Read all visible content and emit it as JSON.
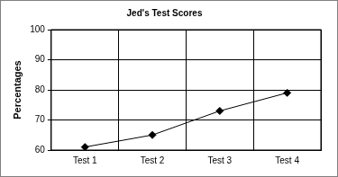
{
  "chart_data": {
    "type": "line",
    "title": "Jed's Test Scores",
    "ylabel": "Percentages",
    "categories": [
      "Test 1",
      "Test 2",
      "Test 3",
      "Test 4"
    ],
    "values": [
      61,
      65,
      73,
      79
    ],
    "color": "#000000",
    "marker": "diamond",
    "ylim": [
      60,
      100
    ],
    "yticks": [
      60,
      70,
      80,
      90,
      100
    ],
    "grid": true
  }
}
